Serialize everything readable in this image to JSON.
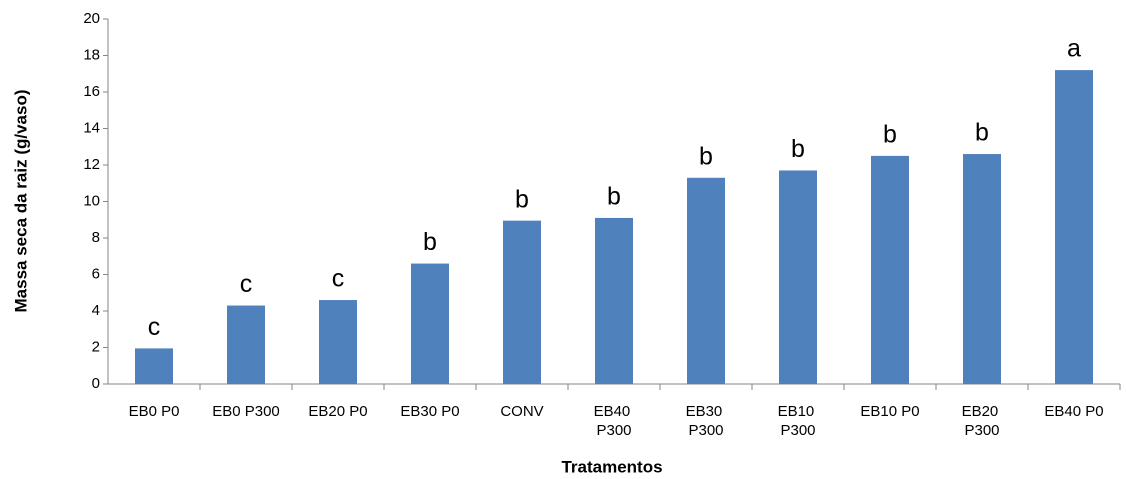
{
  "chart_data": {
    "type": "bar",
    "categories": [
      "EB0 P0",
      "EB0 P300",
      "EB20 P0",
      "EB30 P0",
      "CONV",
      "EB40 P300",
      "EB30 P300",
      "EB10 P300",
      "EB10 P0",
      "EB20 P300",
      "EB40 P0"
    ],
    "values": [
      1.95,
      4.3,
      4.6,
      6.6,
      8.95,
      9.1,
      11.3,
      11.7,
      12.5,
      12.6,
      17.2
    ],
    "annotations": [
      "c",
      "c",
      "c",
      "b",
      "b",
      "b",
      "b",
      "b",
      "b",
      "b",
      "a"
    ],
    "color": "#4f81bd",
    "x_label": "Tratamentos",
    "y_label": "Massa seca da raiz (g/vaso)",
    "ylim": [
      0,
      20
    ],
    "yticks": [
      0,
      2,
      4,
      6,
      8,
      10,
      12,
      14,
      16,
      18,
      20
    ],
    "grid": false
  }
}
